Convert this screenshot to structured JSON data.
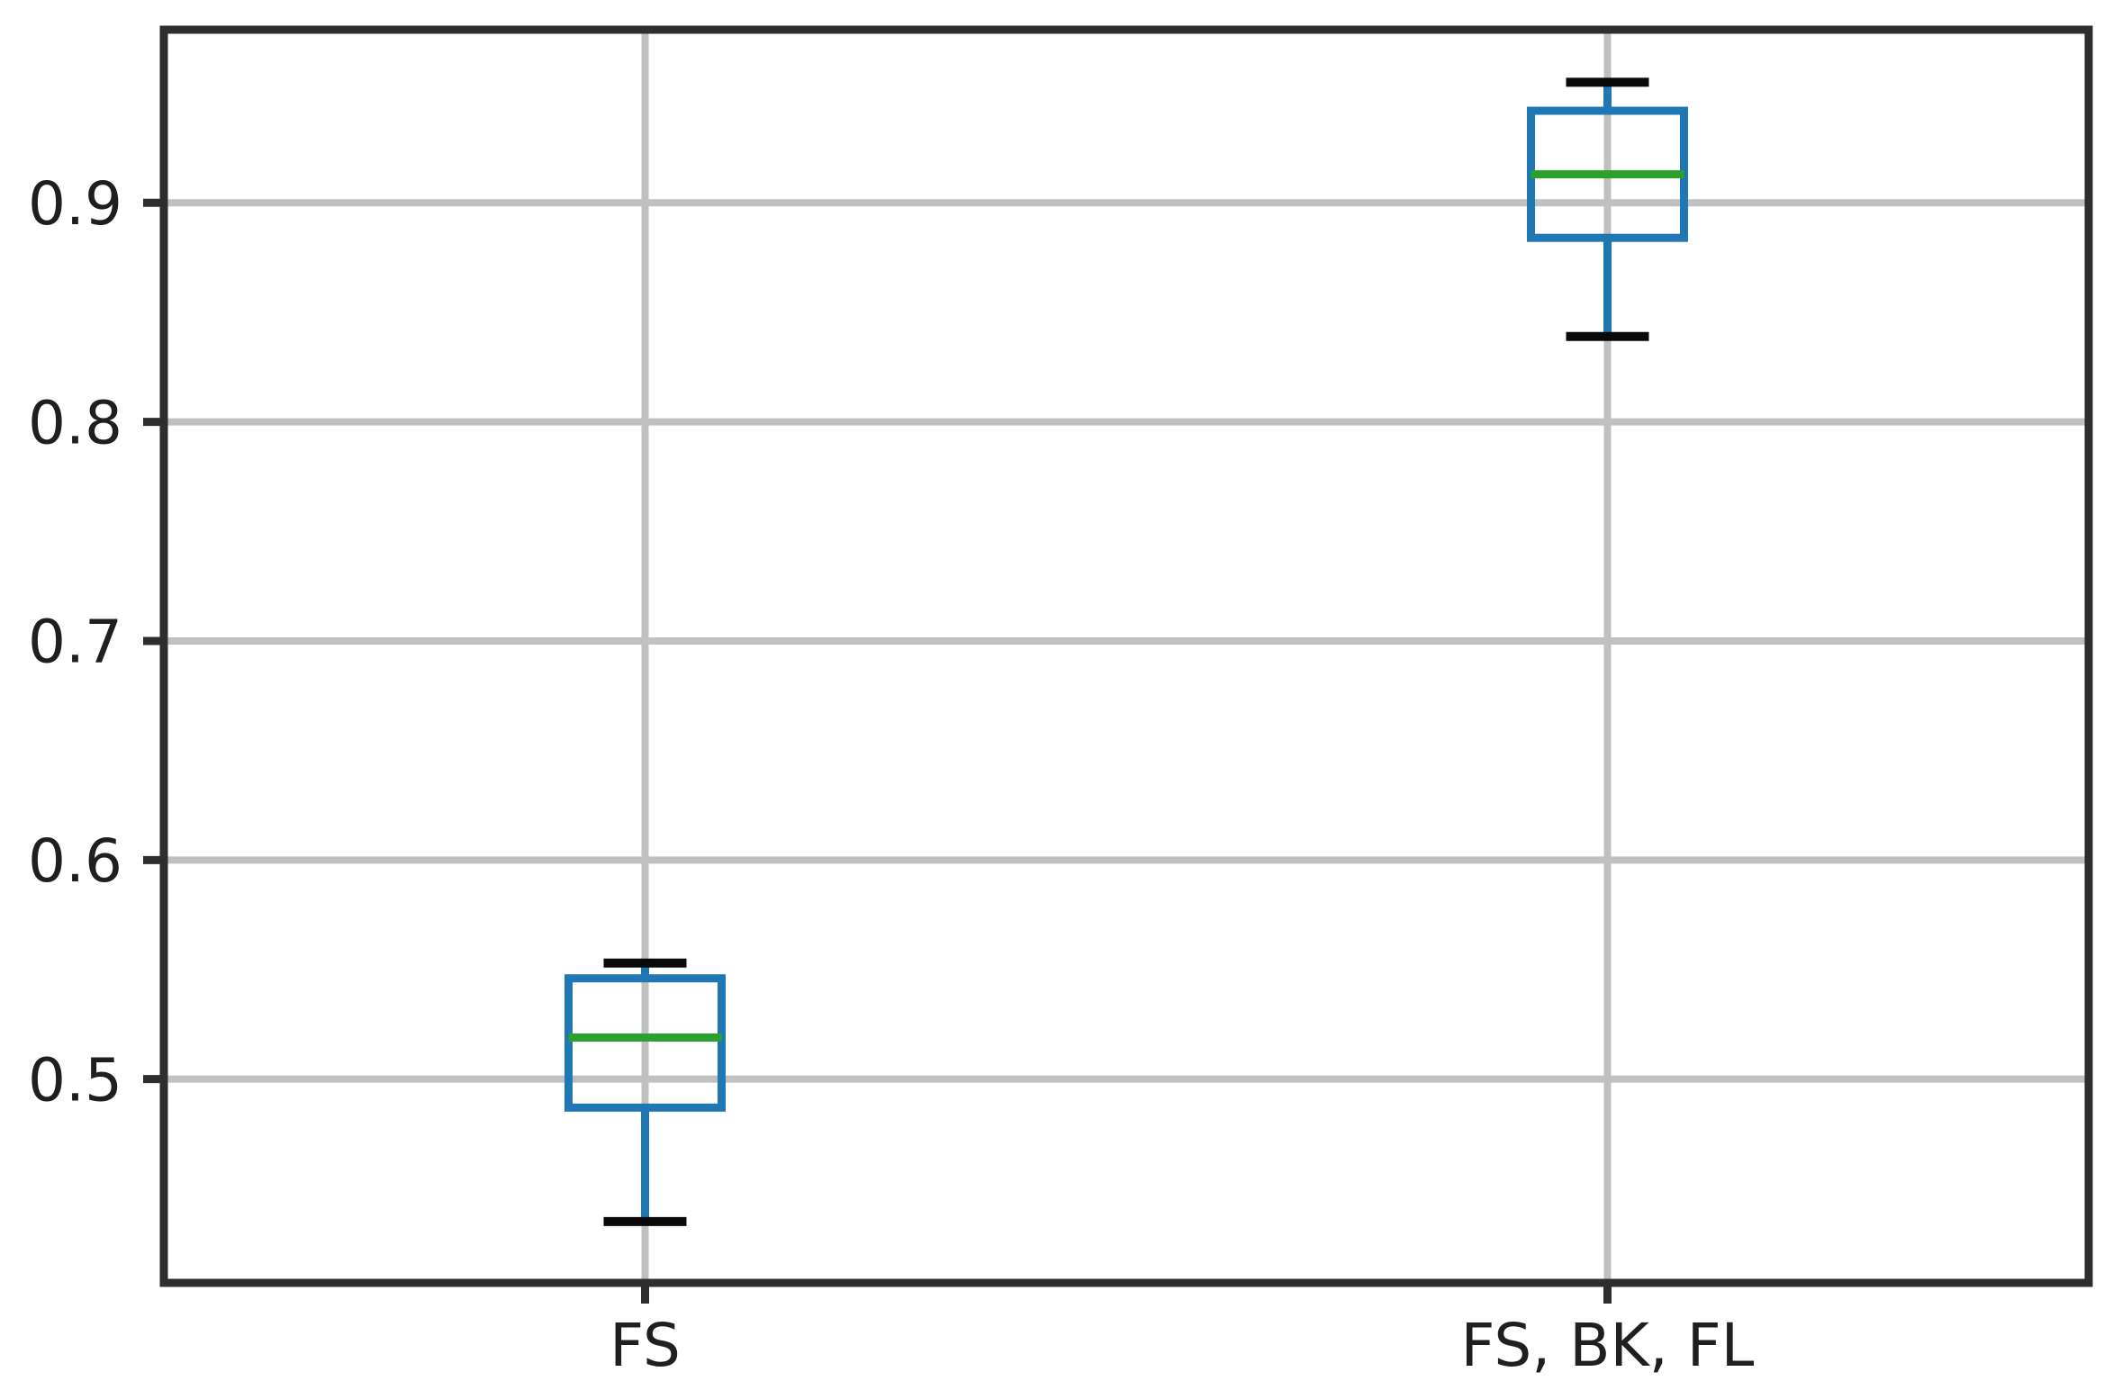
{
  "figure": {
    "background": "#ffffff"
  },
  "chart_data": {
    "type": "boxplot",
    "title": "",
    "xlabel": "",
    "ylabel": "",
    "categories": [
      "FS",
      "FS, BK, FL"
    ],
    "boxes": [
      {
        "label": "FS",
        "whisker_low": 0.435,
        "q1": 0.487,
        "median": 0.519,
        "q3": 0.546,
        "whisker_high": 0.553
      },
      {
        "label": "FS, BK, FL",
        "whisker_low": 0.839,
        "q1": 0.884,
        "median": 0.913,
        "q3": 0.942,
        "whisker_high": 0.955
      }
    ],
    "ylim": [
      0.407,
      0.979
    ],
    "xlim": [
      0.5,
      2.5
    ],
    "positions": [
      1,
      2
    ],
    "yticks": [
      0.5,
      0.6,
      0.7,
      0.8,
      0.9
    ],
    "ytick_labels": [
      "0.5",
      "0.6",
      "0.7",
      "0.8",
      "0.9"
    ],
    "grid": true,
    "grid_axes": "both",
    "legend": false,
    "colors": {
      "box": "#1f77b4",
      "whisker": "#1f77b4",
      "cap": "#0a0a0a",
      "median": "#2ca02c",
      "grid": "#c0c0c0",
      "spine": "#2e2e2e",
      "tick": "#2e2e2e",
      "tick_label": "#1f1f1f",
      "background": "#ffffff"
    }
  }
}
